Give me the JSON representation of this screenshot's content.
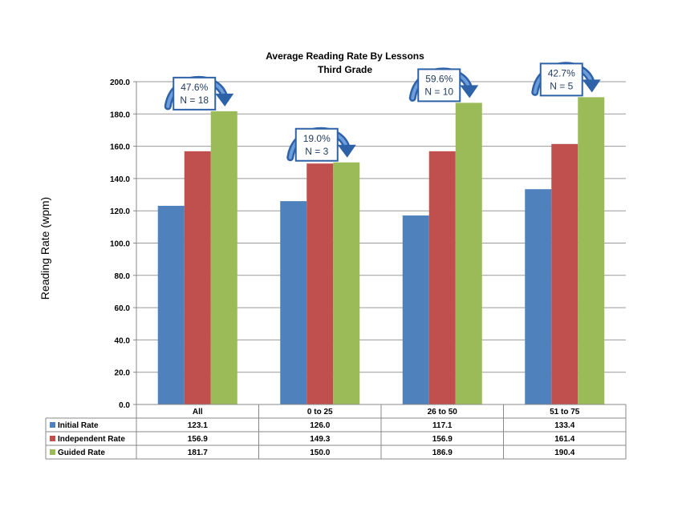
{
  "chart_data": {
    "type": "bar",
    "title": "Average Reading Rate By Lessons",
    "subtitle": "Third Grade",
    "ylabel": "Reading Rate (wpm)",
    "xlabel": "",
    "ylim": [
      0,
      200
    ],
    "yticks": [
      "0.0",
      "20.0",
      "40.0",
      "60.0",
      "80.0",
      "100.0",
      "120.0",
      "140.0",
      "160.0",
      "180.0",
      "200.0"
    ],
    "grid": true,
    "categories": [
      "All",
      "0 to 25",
      "26 to 50",
      "51 to 75"
    ],
    "series": [
      {
        "name": "Initial Rate",
        "color": "#4f81bd",
        "values": [
          123.1,
          126.0,
          117.1,
          133.4
        ],
        "labels": [
          "123.1",
          "126.0",
          "117.1",
          "133.4"
        ]
      },
      {
        "name": "Independent Rate",
        "color": "#c0504d",
        "values": [
          156.9,
          149.3,
          156.9,
          161.4
        ],
        "labels": [
          "156.9",
          "149.3",
          "156.9",
          "161.4"
        ]
      },
      {
        "name": "Guided Rate",
        "color": "#9bbb59",
        "values": [
          181.7,
          150.0,
          186.9,
          190.4
        ],
        "labels": [
          "181.7",
          "150.0",
          "186.9",
          "190.4"
        ]
      }
    ],
    "annotations": [
      {
        "line1": "47.6%",
        "line2": "N = 18"
      },
      {
        "line1": "19.0%",
        "line2": "N = 3"
      },
      {
        "line1": "59.6%",
        "line2": "N = 10"
      },
      {
        "line1": "42.7%",
        "line2": "N = 5"
      }
    ],
    "legend": "data-table"
  }
}
